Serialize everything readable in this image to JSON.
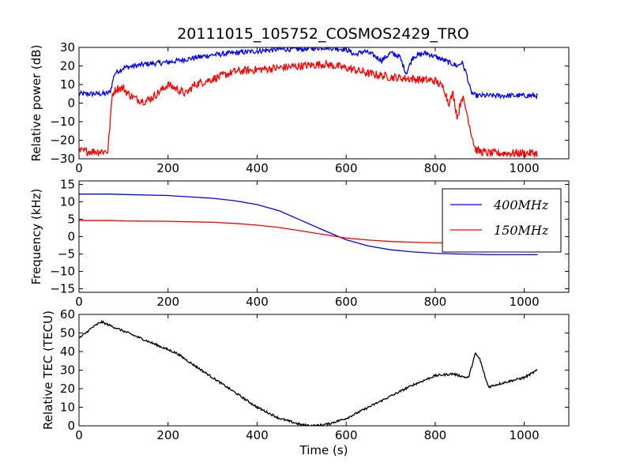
{
  "title": "20111015_105752_COSMOS2429_TRO",
  "colors": {
    "blue": "#0000ff",
    "red": "#ff0000",
    "black": "#000000"
  },
  "chart_data": [
    {
      "type": "line",
      "ylabel": "Relative power (dB)",
      "xlim": [
        0,
        1100
      ],
      "ylim": [
        -30,
        30
      ],
      "xticks": [
        "0",
        "200",
        "400",
        "600",
        "800",
        "1000"
      ],
      "yticks": [
        "−30",
        "−20",
        "−10",
        "0",
        "10",
        "20",
        "30"
      ],
      "xtick_values": [
        0,
        200,
        400,
        600,
        800,
        1000
      ],
      "ytick_values": [
        -30,
        -20,
        -10,
        0,
        10,
        20,
        30
      ],
      "grid": false,
      "series": [
        {
          "color": "#0000ff",
          "noise": 1.4,
          "x": [
            0,
            60,
            70,
            80,
            100,
            150,
            200,
            250,
            300,
            350,
            400,
            450,
            500,
            550,
            600,
            620,
            640,
            660,
            680,
            700,
            720,
            735,
            750,
            780,
            800,
            830,
            850,
            860,
            870,
            880,
            890,
            920,
            960,
            1000,
            1030
          ],
          "y": [
            5,
            5,
            6,
            16,
            19,
            21,
            22,
            24,
            26,
            27,
            28,
            29,
            29,
            30,
            29,
            26,
            28,
            26,
            23,
            27,
            25,
            16,
            25,
            27,
            25,
            22,
            20,
            22,
            16,
            6,
            4,
            4,
            4,
            4,
            4
          ]
        },
        {
          "color": "#ff0000",
          "noise": 2.2,
          "x": [
            0,
            65,
            70,
            75,
            85,
            100,
            110,
            130,
            150,
            170,
            200,
            240,
            260,
            300,
            350,
            400,
            450,
            500,
            550,
            600,
            650,
            700,
            750,
            800,
            820,
            830,
            840,
            850,
            860,
            870,
            880,
            890,
            900,
            920,
            960,
            1000,
            1030
          ],
          "y": [
            -26,
            -26,
            -10,
            5,
            8,
            8,
            5,
            2,
            1,
            4,
            10,
            5,
            10,
            13,
            17,
            18,
            19,
            20,
            21,
            19,
            16,
            14,
            13,
            12,
            8,
            0,
            5,
            -8,
            4,
            -4,
            -15,
            -25,
            -26,
            -27,
            -27,
            -27,
            -27
          ]
        }
      ]
    },
    {
      "type": "line",
      "ylabel": "Frequency (kHz)",
      "xlim": [
        0,
        1100
      ],
      "ylim": [
        -16,
        16
      ],
      "xticks": [
        "0",
        "200",
        "400",
        "600",
        "800",
        "1000"
      ],
      "yticks": [
        "−15",
        "−10",
        "−5",
        "0",
        "5",
        "10",
        "15"
      ],
      "xtick_values": [
        0,
        200,
        400,
        600,
        800,
        1000
      ],
      "ytick_values": [
        -15,
        -10,
        -5,
        0,
        5,
        10,
        15
      ],
      "grid": false,
      "legend_position": "upper right",
      "series": [
        {
          "name": "400MHz",
          "color": "#0000ff",
          "noise": 0,
          "x": [
            0,
            70,
            100,
            200,
            300,
            350,
            400,
            450,
            500,
            550,
            600,
            650,
            700,
            750,
            800,
            850,
            900,
            920,
            1000,
            1030
          ],
          "y": [
            12.2,
            12.2,
            12.1,
            11.8,
            11,
            10.3,
            9.2,
            7.4,
            4.6,
            1.8,
            -0.9,
            -2.7,
            -3.8,
            -4.4,
            -4.8,
            -5.0,
            -5.1,
            -5.2,
            -5.2,
            -5.2
          ]
        },
        {
          "name": "150MHz",
          "color": "#ff0000",
          "noise": 0,
          "x": [
            0,
            70,
            100,
            200,
            300,
            350,
            400,
            450,
            500,
            550,
            600,
            650,
            700,
            750,
            800,
            850,
            900,
            1000,
            1030
          ],
          "y": [
            4.6,
            4.6,
            4.5,
            4.4,
            4.1,
            3.8,
            3.3,
            2.6,
            1.6,
            0.6,
            -0.4,
            -1.0,
            -1.4,
            -1.6,
            -1.8,
            -1.9,
            -1.9,
            -1.9,
            -1.9
          ]
        }
      ]
    },
    {
      "type": "line",
      "ylabel": "Relative TEC (TECU)",
      "xlabel": "Time (s)",
      "xlim": [
        0,
        1100
      ],
      "ylim": [
        0,
        60
      ],
      "xticks": [
        "0",
        "200",
        "400",
        "600",
        "800",
        "1000"
      ],
      "yticks": [
        "0",
        "10",
        "20",
        "30",
        "40",
        "50",
        "60"
      ],
      "xtick_values": [
        0,
        200,
        400,
        600,
        800,
        1000
      ],
      "ytick_values": [
        0,
        10,
        20,
        30,
        40,
        50,
        60
      ],
      "grid": false,
      "series": [
        {
          "color": "#000000",
          "noise": 0.6,
          "x": [
            0,
            10,
            30,
            50,
            60,
            80,
            100,
            150,
            200,
            220,
            250,
            300,
            350,
            400,
            450,
            500,
            530,
            560,
            600,
            650,
            700,
            750,
            800,
            840,
            870,
            875,
            890,
            900,
            915,
            920,
            950,
            1000,
            1030
          ],
          "y": [
            47,
            49,
            53,
            56,
            55,
            53,
            51,
            46,
            41,
            39,
            34,
            26,
            18,
            10,
            4,
            0.5,
            0,
            1,
            4,
            10,
            16,
            22,
            27,
            28,
            26,
            26,
            39,
            36,
            24,
            21,
            23,
            26,
            30
          ]
        }
      ]
    }
  ]
}
